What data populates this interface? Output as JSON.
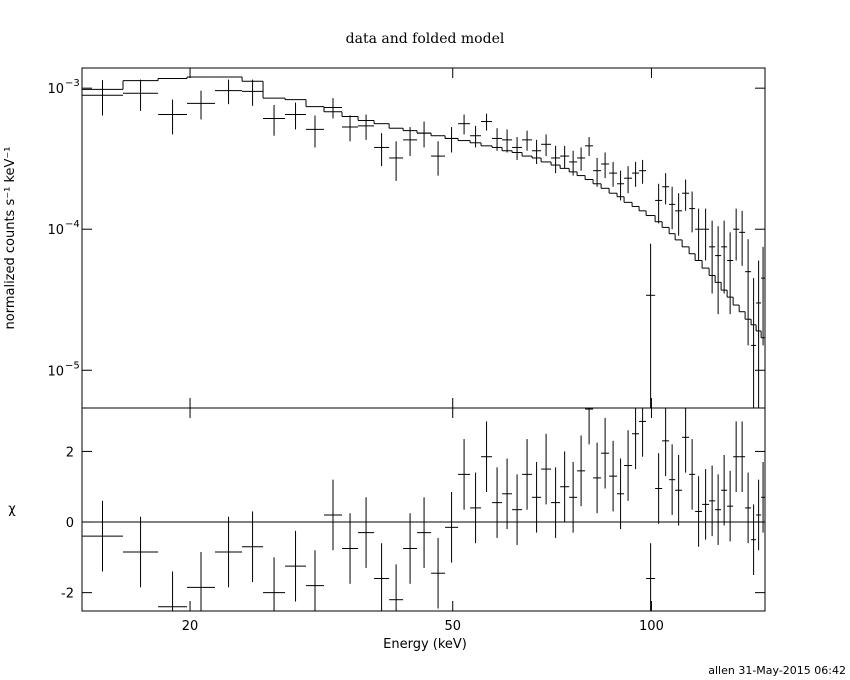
{
  "chart_data": [
    {
      "type": "spectrum",
      "title": "data and folded model",
      "ylabel": "normalized counts s⁻¹ keV⁻¹",
      "log_x": true,
      "log_y": true,
      "xlim": [
        13.72,
        148.6
      ],
      "ylim": [
        5.4e-06,
        0.00139
      ],
      "xticks": [
        20,
        50,
        100
      ],
      "yticks": [
        {
          "value": 1e-05,
          "label": "10",
          "sup": "−5"
        },
        {
          "value": 0.0001,
          "label": "10",
          "sup": "−4"
        },
        {
          "value": 0.001,
          "label": "10",
          "sup": "−3"
        }
      ],
      "bins": [
        13.72,
        15.83,
        17.89,
        19.79,
        21.82,
        23.98,
        25.8,
        27.86,
        29.97,
        31.91,
        33.98,
        35.94,
        38.0,
        40.05,
        42.05,
        44.15,
        46.36,
        48.68,
        50.94,
        53.12,
        55.19,
        57.35,
        59.39,
        61.5,
        63.68,
        65.94,
        68.05,
        70.46,
        72.72,
        75.05,
        77.15,
        79.34,
        81.58,
        83.89,
        86.27,
        88.7,
        90.89,
        93.47,
        95.78,
        98.15,
        101.29,
        103.8,
        106.36,
        108.61,
        111.29,
        114.04,
        116.45,
        119.32,
        122.28,
        124.87,
        127.51,
        130.21,
        132.97,
        135.79,
        138.64,
        141.56,
        144.06,
        146.6,
        148.6
      ],
      "data": {
        "color": "#000000",
        "values": [
          0.00089,
          0.00092,
          0.00065,
          0.00078,
          0.00096,
          0.00095,
          0.00061,
          0.00065,
          0.00051,
          0.00073,
          0.00053,
          0.00054,
          0.00038,
          0.00032,
          0.00043,
          0.00048,
          0.00033,
          0.00044,
          0.00056,
          0.00046,
          0.00058,
          0.00044,
          0.00043,
          0.00038,
          0.00043,
          0.00036,
          0.0004,
          0.00032,
          0.00033,
          0.0003,
          0.00032,
          0.00039,
          0.00026,
          0.00029,
          0.00025,
          0.00021,
          0.00023,
          0.00025,
          0.00026,
          3.4e-05,
          0.00016,
          0.0002,
          0.00015,
          0.000135,
          0.00018,
          0.00014,
          0.0001,
          0.0001,
          7.5e-05,
          6.5e-05,
          7.5e-05,
          6e-05,
          0.0001,
          9.5e-05,
          5e-05,
          1.5e-05,
          3e-05,
          4.5e-05
        ],
        "errors": [
          0.00025,
          0.00023,
          0.00018,
          0.00018,
          0.00019,
          0.0002,
          0.00015,
          0.00014,
          0.00013,
          0.00012,
          0.00011,
          0.00011,
          0.0001,
          0.0001,
          0.0001,
          0.0001,
          9e-05,
          9e-05,
          9e-05,
          8e-05,
          8e-05,
          8e-05,
          8e-05,
          7e-05,
          7e-05,
          7e-05,
          7e-05,
          7e-05,
          6e-05,
          6e-05,
          6e-05,
          6e-05,
          6e-05,
          6e-05,
          5e-05,
          5e-05,
          5e-05,
          5e-05,
          5e-05,
          4.5e-05,
          5e-05,
          5e-05,
          5e-05,
          4.5e-05,
          4.5e-05,
          4.5e-05,
          4e-05,
          4e-05,
          4e-05,
          4e-05,
          4e-05,
          3.5e-05,
          4e-05,
          4e-05,
          3.5e-05,
          3e-05,
          3e-05,
          3e-05
        ]
      },
      "model": {
        "color": "#000000",
        "values": [
          0.00098,
          0.00113,
          0.00117,
          0.0012,
          0.0012,
          0.00112,
          0.00085,
          0.00083,
          0.00074,
          0.00068,
          0.00063,
          0.00059,
          0.00056,
          0.00052,
          0.0005,
          0.00048,
          0.00046,
          0.00044,
          0.000425,
          0.00041,
          0.00039,
          0.00038,
          0.00036,
          0.00035,
          0.00033,
          0.00032,
          0.0003,
          0.000285,
          0.00027,
          0.000255,
          0.00024,
          0.000225,
          0.00021,
          0.000195,
          0.00018,
          0.00017,
          0.000155,
          0.000145,
          0.000135,
          0.000125,
          0.000113,
          0.000103,
          9.3e-05,
          8.4e-05,
          7.5e-05,
          6.7e-05,
          6e-05,
          5.3e-05,
          4.7e-05,
          4.2e-05,
          3.7e-05,
          3.3e-05,
          2.9e-05,
          2.6e-05,
          2.3e-05,
          2.1e-05,
          1.9e-05,
          1.7e-05
        ]
      }
    },
    {
      "type": "residual",
      "ylabel": "χ",
      "xlabel": "Energy (keV)",
      "log_x": true,
      "xlim": [
        13.72,
        148.6
      ],
      "ylim": [
        -2.52,
        3.23
      ],
      "xticks": [
        20,
        50,
        100
      ],
      "yticks": [
        -2,
        0,
        2
      ],
      "zero_line_color": "#00cc00",
      "error": 1,
      "color": "#000000",
      "values": [
        -0.4,
        -0.85,
        -2.4,
        -1.85,
        -0.85,
        -0.7,
        -2.0,
        -1.25,
        -1.8,
        0.2,
        -0.75,
        -0.3,
        -1.6,
        -2.2,
        -0.75,
        -0.3,
        -1.45,
        -0.15,
        1.35,
        0.4,
        1.85,
        0.55,
        0.8,
        0.35,
        1.35,
        0.7,
        1.5,
        0.55,
        1.0,
        0.7,
        1.45,
        3.2,
        1.25,
        1.95,
        1.3,
        0.8,
        1.6,
        2.5,
        2.85,
        -1.6,
        0.95,
        2.3,
        1.2,
        0.9,
        2.4,
        1.35,
        0.3,
        0.5,
        0.6,
        0.35,
        0.9,
        0.45,
        1.85,
        1.85,
        0.4,
        -0.5,
        0.2,
        0.7
      ]
    }
  ],
  "footer": "allen 31-May-2015 06:42"
}
